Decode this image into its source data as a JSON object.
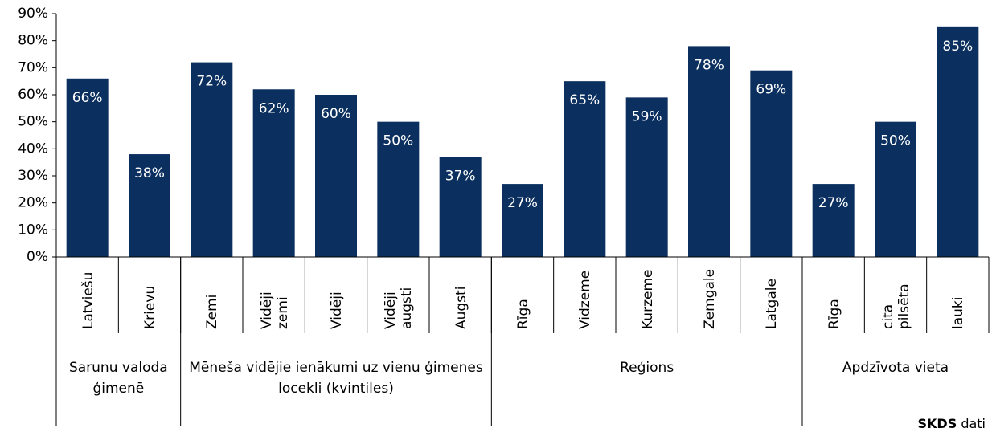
{
  "chart_data": {
    "type": "bar",
    "categories": [
      "Latviešu",
      "Krievu",
      "Zemi",
      "Vidēji zemi",
      "Vidēji",
      "Vidēji augsti",
      "Augsti",
      "Rīga",
      "Vidzeme",
      "Kurzeme",
      "Zemgale",
      "Latgale",
      "Rīga",
      "cita pilsēta",
      "lauki"
    ],
    "values": [
      66,
      38,
      72,
      62,
      60,
      50,
      37,
      27,
      65,
      59,
      78,
      69,
      27,
      50,
      85
    ],
    "value_labels": [
      "66%",
      "38%",
      "72%",
      "62%",
      "60%",
      "50%",
      "37%",
      "27%",
      "65%",
      "59%",
      "78%",
      "69%",
      "27%",
      "50%",
      "85%"
    ],
    "groups": [
      {
        "label": "Sarunu valoda ģimenē",
        "span": 2
      },
      {
        "label": "Mēneša vidējie ienākumi uz vienu ģimenes locekli (kvintiles)",
        "span": 5
      },
      {
        "label": "Reģions",
        "span": 5
      },
      {
        "label": "Apdzīvota vieta",
        "span": 3
      }
    ],
    "color": "#0b2f5e",
    "ylim": [
      0,
      90
    ],
    "yticks": [
      {
        "value": 0,
        "label": "0%"
      },
      {
        "value": 10,
        "label": "10%"
      },
      {
        "value": 20,
        "label": "20%"
      },
      {
        "value": 30,
        "label": "30%"
      },
      {
        "value": 40,
        "label": "40%"
      },
      {
        "value": 50,
        "label": "50%"
      },
      {
        "value": 60,
        "label": "60%"
      },
      {
        "value": 70,
        "label": "70%"
      },
      {
        "value": 80,
        "label": "80%"
      },
      {
        "value": 90,
        "label": "90%"
      }
    ],
    "source": {
      "bold": "SKDS",
      "text": "dati"
    }
  }
}
